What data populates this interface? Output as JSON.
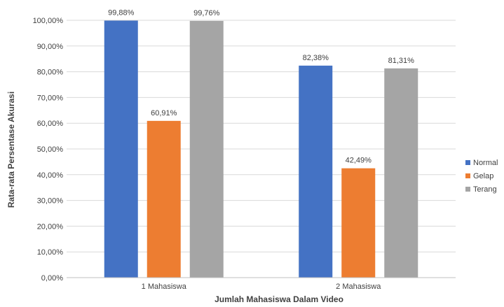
{
  "chart_data": {
    "type": "bar",
    "title": "",
    "xlabel": "Jumlah Mahasiswa Dalam Video",
    "ylabel": "Rata-rata Persentase Akurasi",
    "categories": [
      "1 Mahasiswa",
      "2 Mahasiswa"
    ],
    "series": [
      {
        "name": "Normal",
        "color": "#4472C4",
        "values": [
          99.88,
          82.38
        ],
        "labels": [
          "99,88%",
          "82,38%"
        ]
      },
      {
        "name": "Gelap",
        "color": "#ED7D31",
        "values": [
          60.91,
          42.49
        ],
        "labels": [
          "60,91%",
          "42,49%"
        ]
      },
      {
        "name": "Terang",
        "color": "#A5A5A5",
        "values": [
          99.76,
          81.31
        ],
        "labels": [
          "99,76%",
          "81,31%"
        ]
      }
    ],
    "ylim": [
      0,
      100
    ],
    "yticks": [
      "0,00%",
      "10,00%",
      "20,00%",
      "30,00%",
      "40,00%",
      "50,00%",
      "60,00%",
      "70,00%",
      "80,00%",
      "90,00%",
      "100,00%"
    ],
    "grid": true,
    "legend_position": "right"
  }
}
